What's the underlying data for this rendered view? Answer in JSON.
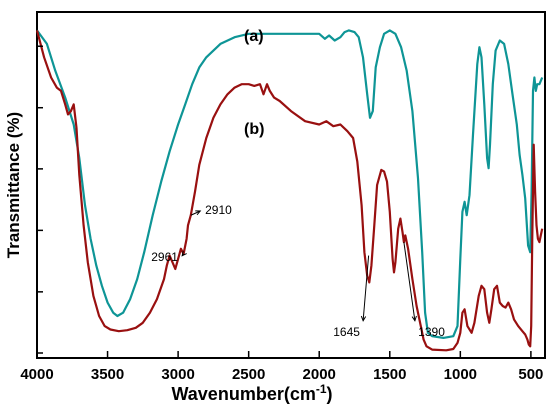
{
  "chart_data": {
    "type": "line",
    "title": "",
    "xlabel": "Wavenumber(cm",
    "xlabel_superscript": "-1",
    "xlabel_close": ")",
    "ylabel": "Transmittance (%)",
    "xlim": [
      4000,
      400
    ],
    "x_reversed": true,
    "ylim": [
      0,
      100
    ],
    "y_tick_labels_shown": false,
    "x_ticks": [
      4000,
      3500,
      3000,
      2500,
      2000,
      1500,
      1000,
      500
    ],
    "x_tick_labels": [
      "4000",
      "3500",
      "3000",
      "2500",
      "2000",
      "1500",
      "1000",
      "500"
    ],
    "y_ticks": [
      0,
      18.2,
      36.5,
      54.8,
      73,
      91.3
    ],
    "grid": false,
    "series": [
      {
        "name": "(a)",
        "color": "#0e9596",
        "points": [
          [
            4000,
            96
          ],
          [
            3930,
            92
          ],
          [
            3870,
            84
          ],
          [
            3800,
            76
          ],
          [
            3740,
            68
          ],
          [
            3700,
            58
          ],
          [
            3660,
            44
          ],
          [
            3620,
            34
          ],
          [
            3580,
            26
          ],
          [
            3540,
            20
          ],
          [
            3500,
            15
          ],
          [
            3460,
            12
          ],
          [
            3430,
            11
          ],
          [
            3390,
            12
          ],
          [
            3340,
            16
          ],
          [
            3290,
            22
          ],
          [
            3240,
            30
          ],
          [
            3180,
            41
          ],
          [
            3120,
            51
          ],
          [
            3060,
            60
          ],
          [
            3000,
            68
          ],
          [
            2950,
            74
          ],
          [
            2900,
            80
          ],
          [
            2850,
            85
          ],
          [
            2800,
            88
          ],
          [
            2700,
            92
          ],
          [
            2600,
            94
          ],
          [
            2500,
            95
          ],
          [
            2300,
            95
          ],
          [
            2000,
            95
          ],
          [
            1960,
            93.5
          ],
          [
            1930,
            94.5
          ],
          [
            1890,
            93
          ],
          [
            1850,
            94
          ],
          [
            1820,
            95.5
          ],
          [
            1790,
            96
          ],
          [
            1750,
            95.5
          ],
          [
            1720,
            94
          ],
          [
            1690,
            88
          ],
          [
            1660,
            77
          ],
          [
            1640,
            70
          ],
          [
            1620,
            72
          ],
          [
            1600,
            85
          ],
          [
            1570,
            91
          ],
          [
            1540,
            95
          ],
          [
            1500,
            96
          ],
          [
            1460,
            95
          ],
          [
            1420,
            91
          ],
          [
            1380,
            84
          ],
          [
            1340,
            72
          ],
          [
            1300,
            52
          ],
          [
            1270,
            30
          ],
          [
            1250,
            12
          ],
          [
            1230,
            6
          ],
          [
            1200,
            5
          ],
          [
            1120,
            4.5
          ],
          [
            1050,
            5
          ],
          [
            1020,
            8
          ],
          [
            1000,
            28
          ],
          [
            985,
            42
          ],
          [
            970,
            45
          ],
          [
            955,
            41
          ],
          [
            935,
            47
          ],
          [
            910,
            65
          ],
          [
            880,
            86
          ],
          [
            865,
            91
          ],
          [
            850,
            88
          ],
          [
            830,
            74
          ],
          [
            810,
            58
          ],
          [
            800,
            55
          ],
          [
            790,
            62
          ],
          [
            770,
            80
          ],
          [
            750,
            90
          ],
          [
            720,
            93
          ],
          [
            690,
            92
          ],
          [
            660,
            86
          ],
          [
            630,
            77
          ],
          [
            600,
            68
          ],
          [
            580,
            59
          ],
          [
            560,
            53
          ],
          [
            540,
            46
          ],
          [
            520,
            32
          ],
          [
            505,
            30
          ],
          [
            495,
            48
          ],
          [
            485,
            78
          ],
          [
            475,
            82
          ],
          [
            465,
            78
          ],
          [
            455,
            80
          ],
          [
            440,
            80
          ],
          [
            420,
            82
          ]
        ]
      },
      {
        "name": "(b)",
        "color": "#991010",
        "points": [
          [
            4000,
            96
          ],
          [
            3950,
            88
          ],
          [
            3900,
            82
          ],
          [
            3860,
            79
          ],
          [
            3830,
            78
          ],
          [
            3800,
            74
          ],
          [
            3780,
            71
          ],
          [
            3760,
            72
          ],
          [
            3740,
            74
          ],
          [
            3720,
            67
          ],
          [
            3700,
            53
          ],
          [
            3670,
            38
          ],
          [
            3640,
            27
          ],
          [
            3600,
            17
          ],
          [
            3560,
            11
          ],
          [
            3520,
            8
          ],
          [
            3480,
            7
          ],
          [
            3420,
            6.5
          ],
          [
            3360,
            6.8
          ],
          [
            3300,
            7.5
          ],
          [
            3250,
            9
          ],
          [
            3200,
            12
          ],
          [
            3150,
            16
          ],
          [
            3100,
            22
          ],
          [
            3080,
            26
          ],
          [
            3060,
            29
          ],
          [
            3040,
            27
          ],
          [
            3020,
            25
          ],
          [
            3000,
            28
          ],
          [
            2980,
            31
          ],
          [
            2961,
            29.5
          ],
          [
            2940,
            34
          ],
          [
            2930,
            38
          ],
          [
            2910,
            41
          ],
          [
            2880,
            48
          ],
          [
            2850,
            56
          ],
          [
            2800,
            64
          ],
          [
            2750,
            70
          ],
          [
            2700,
            74
          ],
          [
            2650,
            77
          ],
          [
            2600,
            79
          ],
          [
            2550,
            80
          ],
          [
            2500,
            80
          ],
          [
            2460,
            79.5
          ],
          [
            2420,
            80
          ],
          [
            2395,
            77
          ],
          [
            2370,
            80
          ],
          [
            2350,
            78
          ],
          [
            2320,
            76
          ],
          [
            2280,
            75
          ],
          [
            2200,
            72
          ],
          [
            2100,
            69
          ],
          [
            2000,
            68
          ],
          [
            1950,
            69
          ],
          [
            1900,
            67.5
          ],
          [
            1850,
            68
          ],
          [
            1800,
            66
          ],
          [
            1760,
            64
          ],
          [
            1730,
            57
          ],
          [
            1700,
            44
          ],
          [
            1680,
            30
          ],
          [
            1660,
            23
          ],
          [
            1645,
            21
          ],
          [
            1630,
            26
          ],
          [
            1610,
            38
          ],
          [
            1590,
            50
          ],
          [
            1560,
            54.5
          ],
          [
            1540,
            54
          ],
          [
            1520,
            51
          ],
          [
            1500,
            42
          ],
          [
            1480,
            28
          ],
          [
            1470,
            24
          ],
          [
            1460,
            27
          ],
          [
            1440,
            37
          ],
          [
            1425,
            40
          ],
          [
            1410,
            36
          ],
          [
            1400,
            33
          ],
          [
            1390,
            35
          ],
          [
            1370,
            31
          ],
          [
            1340,
            22
          ],
          [
            1310,
            14
          ],
          [
            1280,
            8
          ],
          [
            1260,
            4
          ],
          [
            1240,
            2
          ],
          [
            1200,
            1
          ],
          [
            1100,
            0.8
          ],
          [
            1050,
            1.2
          ],
          [
            1020,
            3
          ],
          [
            1000,
            6
          ],
          [
            985,
            12
          ],
          [
            970,
            13
          ],
          [
            950,
            8
          ],
          [
            920,
            6
          ],
          [
            900,
            9
          ],
          [
            870,
            17
          ],
          [
            850,
            20
          ],
          [
            830,
            19
          ],
          [
            810,
            12
          ],
          [
            795,
            9
          ],
          [
            780,
            13
          ],
          [
            760,
            19
          ],
          [
            740,
            20
          ],
          [
            720,
            15
          ],
          [
            700,
            14
          ],
          [
            680,
            13.5
          ],
          [
            660,
            15
          ],
          [
            640,
            13
          ],
          [
            620,
            10
          ],
          [
            590,
            8
          ],
          [
            560,
            6.5
          ],
          [
            540,
            5.5
          ],
          [
            525,
            4
          ],
          [
            515,
            2.5
          ],
          [
            505,
            2
          ],
          [
            498,
            8
          ],
          [
            490,
            35
          ],
          [
            480,
            62
          ],
          [
            470,
            48
          ],
          [
            460,
            38
          ],
          [
            450,
            34
          ],
          [
            440,
            33
          ],
          [
            430,
            35
          ],
          [
            420,
            37
          ]
        ]
      }
    ],
    "annotations": [
      {
        "text": "2910",
        "point_x": 2910,
        "point_y": 41,
        "text_x": 2830,
        "text_y": 42.5,
        "arrow": true
      },
      {
        "text": "2961",
        "point_x": 2961,
        "point_y": 29.5,
        "text_x": 2980,
        "text_y": 28.5,
        "arrow": true
      },
      {
        "text": "1645",
        "point_x": 1650,
        "point_y": 29,
        "text_x": 1690,
        "text_y": 9,
        "arrow": true
      },
      {
        "text": "1390",
        "point_x": 1400,
        "point_y": 33,
        "text_x": 1320,
        "text_y": 9,
        "arrow": true
      }
    ]
  }
}
